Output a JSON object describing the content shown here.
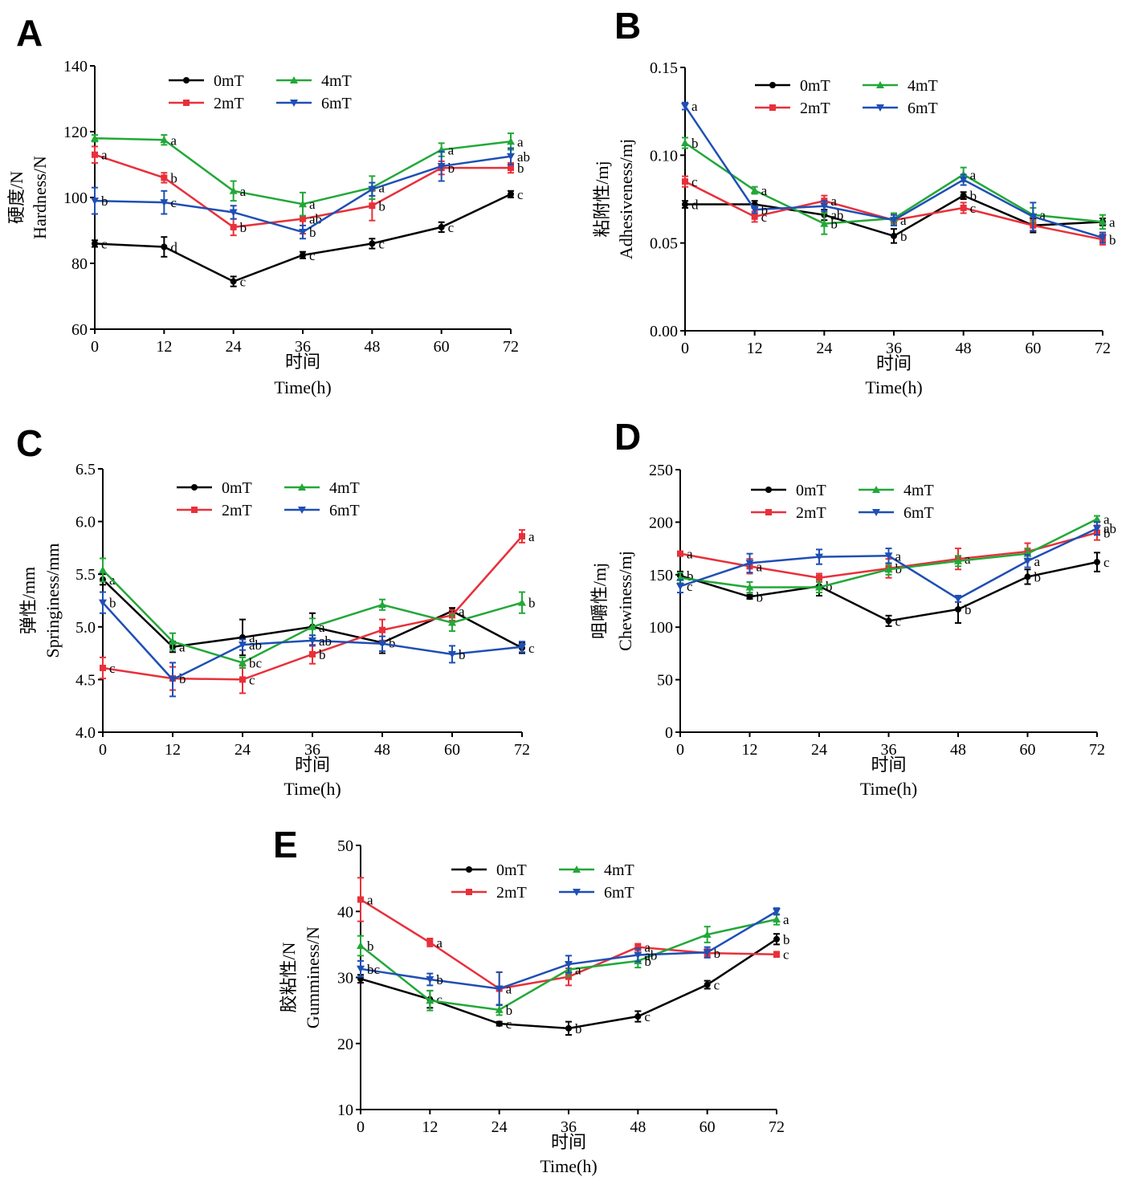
{
  "legend": [
    "0mT",
    "2mT",
    "4mT",
    "6mT"
  ],
  "colors": {
    "0mT": "#000000",
    "2mT": "#e8303a",
    "4mT": "#22a838",
    "6mT": "#1f4fb5"
  },
  "chart_data": [
    {
      "type": "line",
      "panel": "A",
      "ylabel_cn": "硬度/N",
      "ylabel_en": "Hardness/N",
      "xlabel_cn": "时间",
      "xlabel_en": "Time(h)",
      "x": [
        0,
        12,
        24,
        36,
        48,
        60,
        72
      ],
      "xticks": [
        "0",
        "12",
        "24",
        "36",
        "48",
        "60",
        "72"
      ],
      "ylim": [
        60,
        140
      ],
      "yticks": [
        "60",
        "80",
        "100",
        "120",
        "140"
      ],
      "legend_position": "top-center",
      "series": [
        {
          "name": "0mT",
          "values": [
            86,
            85,
            74.5,
            82.5,
            86,
            91,
            101
          ],
          "errors": [
            1,
            3,
            1.5,
            1,
            1.5,
            1.5,
            1
          ],
          "labels": [
            "c",
            "d",
            "c",
            "c",
            "c",
            "c",
            "c"
          ]
        },
        {
          "name": "2mT",
          "values": [
            113,
            106,
            91,
            93.5,
            97.5,
            109,
            109
          ],
          "errors": [
            2.5,
            1.5,
            2.5,
            4.5,
            4.5,
            2,
            1.5
          ],
          "labels": [
            "a",
            "b",
            "b",
            "ab",
            "b",
            "b",
            "b"
          ]
        },
        {
          "name": "4mT",
          "values": [
            118,
            117.5,
            102,
            98,
            103,
            114.5,
            117
          ],
          "errors": [
            1,
            1.5,
            3,
            3.5,
            3.5,
            2,
            2.5
          ],
          "labels": [
            "",
            "a",
            "a",
            "a",
            "a",
            "a",
            "a"
          ]
        },
        {
          "name": "6mT",
          "values": [
            99,
            98.5,
            95.5,
            89.5,
            102.5,
            109.5,
            112.5
          ],
          "errors": [
            4,
            3.5,
            2,
            2,
            2,
            4.5,
            2.5
          ],
          "labels": [
            "b",
            "c",
            "",
            "b",
            "",
            "",
            "ab"
          ]
        }
      ]
    },
    {
      "type": "line",
      "panel": "B",
      "ylabel_cn": "粘附性/mj",
      "ylabel_en": "Adhesiveness/mj",
      "xlabel_cn": "时间",
      "xlabel_en": "Time(h)",
      "x": [
        0,
        12,
        24,
        36,
        48,
        60,
        72
      ],
      "xticks": [
        "0",
        "12",
        "24",
        "36",
        "48",
        "60",
        "72"
      ],
      "ylim": [
        0,
        0.15
      ],
      "yticks": [
        "0.00",
        "0.05",
        "0.10",
        "0.15"
      ],
      "legend_position": "top-center",
      "series": [
        {
          "name": "0mT",
          "values": [
            0.072,
            0.072,
            0.066,
            0.054,
            0.077,
            0.06,
            0.062
          ],
          "errors": [
            0.002,
            0.002,
            0.003,
            0.004,
            0.002,
            0.004,
            0.002
          ],
          "labels": [
            "d",
            "",
            "ab",
            "b",
            "b",
            "",
            "a"
          ]
        },
        {
          "name": "2mT",
          "values": [
            0.085,
            0.065,
            0.074,
            0.063,
            0.07,
            0.06,
            0.052
          ],
          "errors": [
            0.003,
            0.003,
            0.003,
            0.003,
            0.003,
            0.003,
            0.003
          ],
          "labels": [
            "c",
            "c",
            "a",
            "a",
            "c",
            "",
            "b"
          ]
        },
        {
          "name": "4mT",
          "values": [
            0.107,
            0.08,
            0.061,
            0.064,
            0.089,
            0.066,
            0.062
          ],
          "errors": [
            0.003,
            0.002,
            0.006,
            0.003,
            0.004,
            0.004,
            0.004
          ],
          "labels": [
            "b",
            "a",
            "b",
            "",
            "a",
            "a",
            ""
          ]
        },
        {
          "name": "6mT",
          "values": [
            0.128,
            0.069,
            0.071,
            0.063,
            0.086,
            0.065,
            0.053
          ],
          "errors": [
            0.002,
            0.002,
            0.003,
            0.003,
            0.003,
            0.008,
            0.003
          ],
          "labels": [
            "a",
            "b",
            "",
            "",
            "",
            "",
            ""
          ]
        }
      ]
    },
    {
      "type": "line",
      "panel": "C",
      "ylabel_cn": "弹性/mm",
      "ylabel_en": "Springiness/mm",
      "xlabel_cn": "时间",
      "xlabel_en": "Time(h)",
      "x": [
        0,
        12,
        24,
        36,
        48,
        60,
        72
      ],
      "xticks": [
        "0",
        "12",
        "24",
        "36",
        "48",
        "60",
        "72"
      ],
      "ylim": [
        4.0,
        6.5
      ],
      "yticks": [
        "4.0",
        "4.5",
        "5.0",
        "5.5",
        "6.0",
        "6.5"
      ],
      "legend_position": "top-center",
      "series": [
        {
          "name": "0mT",
          "values": [
            5.45,
            4.81,
            4.9,
            5.0,
            4.85,
            5.15,
            4.8
          ],
          "errors": [
            0.05,
            0.05,
            0.17,
            0.13,
            0.1,
            0.03,
            0.05
          ],
          "labels": [
            "a",
            "a",
            "a",
            "a",
            "b",
            "a",
            "c"
          ]
        },
        {
          "name": "2mT",
          "values": [
            4.61,
            4.51,
            4.5,
            4.74,
            4.97,
            5.11,
            5.86
          ],
          "errors": [
            0.1,
            0.11,
            0.13,
            0.09,
            0.1,
            0.05,
            0.06
          ],
          "labels": [
            "c",
            "b",
            "c",
            "b",
            "",
            "",
            "a"
          ]
        },
        {
          "name": "4mT",
          "values": [
            5.54,
            4.86,
            4.66,
            5.0,
            5.21,
            5.04,
            5.23
          ],
          "errors": [
            0.11,
            0.08,
            0.05,
            0.08,
            0.05,
            0.08,
            0.1
          ],
          "labels": [
            "",
            "",
            "bc",
            "",
            "",
            "",
            "b"
          ]
        },
        {
          "name": "6mT",
          "values": [
            5.23,
            4.5,
            4.83,
            4.87,
            4.84,
            4.74,
            4.81
          ],
          "errors": [
            0.1,
            0.16,
            0.05,
            0.05,
            0.07,
            0.08,
            0.05
          ],
          "labels": [
            "b",
            "",
            "ab",
            "ab",
            "",
            "b",
            ""
          ]
        }
      ]
    },
    {
      "type": "line",
      "panel": "D",
      "ylabel_cn": "咀嚼性/mj",
      "ylabel_en": "Chewiness/mj",
      "xlabel_cn": "时间",
      "xlabel_en": "Time(h)",
      "x": [
        0,
        12,
        24,
        36,
        48,
        60,
        72
      ],
      "xticks": [
        "0",
        "12",
        "24",
        "36",
        "48",
        "60",
        "72"
      ],
      "ylim": [
        0,
        250
      ],
      "yticks": [
        "0",
        "50",
        "100",
        "150",
        "200",
        "250"
      ],
      "legend_position": "top-center",
      "series": [
        {
          "name": "0mT",
          "values": [
            149,
            129,
            139,
            106,
            117,
            148,
            162
          ],
          "errors": [
            4,
            2,
            9,
            5,
            13,
            7,
            9
          ],
          "labels": [
            "b",
            "b",
            "b",
            "c",
            "b",
            "b",
            "c"
          ]
        },
        {
          "name": "2mT",
          "values": [
            170,
            158,
            147,
            156,
            165,
            172,
            190
          ],
          "errors": [
            2,
            7,
            4,
            9,
            10,
            8,
            7
          ],
          "labels": [
            "a",
            "a",
            "",
            "b",
            "a",
            "",
            "b"
          ]
        },
        {
          "name": "4mT",
          "values": [
            147,
            138,
            138,
            155,
            163,
            170,
            203
          ],
          "errors": [
            5,
            5,
            5,
            5,
            5,
            5,
            3
          ],
          "labels": [
            "",
            "",
            "",
            "",
            "",
            "",
            "a"
          ]
        },
        {
          "name": "6mT",
          "values": [
            139,
            161,
            167,
            168,
            127,
            163,
            194
          ],
          "errors": [
            6,
            9,
            7,
            7,
            3,
            6,
            6
          ],
          "labels": [
            "c",
            "",
            "",
            "a",
            "",
            "a",
            "ab"
          ]
        }
      ]
    },
    {
      "type": "line",
      "panel": "E",
      "ylabel_cn": "胶粘性/N",
      "ylabel_en": "Gumminess/N",
      "xlabel_cn": "时间",
      "xlabel_en": "Time(h)",
      "x": [
        0,
        12,
        24,
        36,
        48,
        60,
        72
      ],
      "xticks": [
        "0",
        "12",
        "24",
        "36",
        "48",
        "60",
        "72"
      ],
      "ylim": [
        10,
        50
      ],
      "yticks": [
        "10",
        "20",
        "30",
        "40",
        "50"
      ],
      "legend_position": "top-center",
      "series": [
        {
          "name": "0mT",
          "values": [
            29.8,
            26.7,
            23.0,
            22.3,
            24.1,
            28.9,
            35.8
          ],
          "errors": [
            0.6,
            1.3,
            0.3,
            1.0,
            0.8,
            0.6,
            0.8
          ],
          "labels": [
            "",
            "c",
            "c",
            "b",
            "c",
            "c",
            "b"
          ]
        },
        {
          "name": "2mT",
          "values": [
            41.8,
            35.3,
            28.3,
            30.1,
            34.6,
            33.7,
            33.5
          ],
          "errors": [
            3.3,
            0.6,
            2.5,
            1.3,
            0.5,
            0.6,
            0.4
          ],
          "labels": [
            "a",
            "a",
            "a",
            "",
            "a",
            "b",
            "c"
          ]
        },
        {
          "name": "4mT",
          "values": [
            34.8,
            26.5,
            25.1,
            31.2,
            32.5,
            36.5,
            38.8
          ],
          "errors": [
            1.5,
            1.5,
            0.8,
            1.0,
            1.0,
            1.2,
            0.8
          ],
          "labels": [
            "b",
            "",
            "b",
            "a",
            "b",
            "",
            "a"
          ]
        },
        {
          "name": "6mT",
          "values": [
            31.3,
            29.7,
            28.3,
            32.0,
            33.4,
            33.8,
            40.0
          ],
          "errors": [
            1.2,
            0.9,
            2.5,
            1.3,
            1.0,
            0.8,
            0.5
          ],
          "labels": [
            "bc",
            "b",
            "",
            "",
            "ab",
            "",
            ""
          ]
        }
      ]
    }
  ]
}
